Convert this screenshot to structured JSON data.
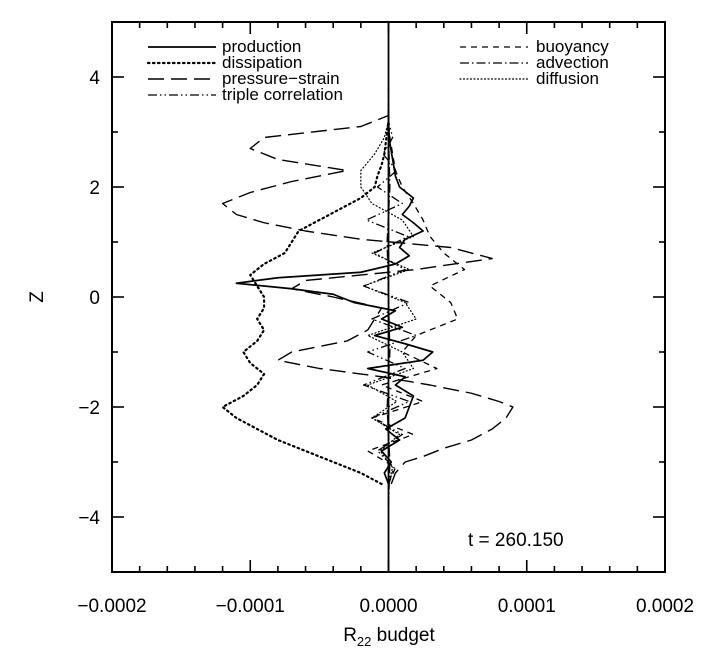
{
  "chart_data": {
    "type": "line",
    "orientation": "vertical-profile",
    "title": "",
    "xlabel_main": "R",
    "xlabel_sub": "22",
    "xlabel_rest": " budget",
    "ylabel": "Z",
    "xlim": [
      -0.0002,
      0.0002
    ],
    "ylim": [
      -5,
      5
    ],
    "x_ticks": [
      -0.0002,
      -0.0001,
      0.0,
      0.0001,
      0.0002
    ],
    "x_tick_labels": [
      "−0.0002",
      "−0.0001",
      "0.0000",
      "0.0001",
      "0.0002"
    ],
    "y_ticks": [
      -4,
      -2,
      0,
      2,
      4
    ],
    "y_tick_labels": [
      "−4",
      "−2",
      "0",
      "2",
      "4"
    ],
    "grid": false,
    "annotation": "t  =  260.150",
    "legend_left": [
      {
        "series": "production",
        "label": "production"
      },
      {
        "series": "dissipation",
        "label": "dissipation"
      },
      {
        "series": "pressure_strain",
        "label": "pressure−strain"
      },
      {
        "series": "triple_correlation",
        "label": "triple correlation"
      }
    ],
    "legend_right": [
      {
        "series": "buoyancy",
        "label": "buoyancy"
      },
      {
        "series": "advection",
        "label": "advection"
      },
      {
        "series": "diffusion",
        "label": "diffusion"
      }
    ],
    "series": {
      "production": {
        "name": "production",
        "dash": "solid",
        "z": [
          -3.4,
          -3.2,
          -3.0,
          -2.8,
          -2.6,
          -2.4,
          -2.2,
          -2.0,
          -1.8,
          -1.6,
          -1.45,
          -1.3,
          -1.15,
          -1.0,
          -0.85,
          -0.7,
          -0.55,
          -0.4,
          -0.25,
          -0.1,
          0.05,
          0.15,
          0.25,
          0.35,
          0.45,
          0.6,
          0.75,
          0.9,
          1.05,
          1.2,
          1.35,
          1.5,
          1.65,
          1.8,
          2.0,
          2.2,
          2.5,
          2.8,
          3.1,
          3.4
        ],
        "x": [
          0.0,
          -3e-06,
          2e-06,
          -5e-06,
          8e-06,
          -2e-06,
          1.2e-05,
          1.5e-05,
          1.8e-05,
          5e-06,
          1.2e-05,
          -1.5e-05,
          2.5e-05,
          3.2e-05,
          1.2e-05,
          -1e-05,
          1e-05,
          -5e-06,
          5e-06,
          -2.5e-05,
          -4e-05,
          -7e-05,
          -0.00011,
          -8e-05,
          -2e-05,
          5e-06,
          1.5e-05,
          8e-06,
          1.2e-05,
          2.5e-05,
          1.8e-05,
          1e-05,
          1.5e-05,
          1.8e-05,
          8e-06,
          5e-06,
          3e-06,
          1e-06,
          0.0,
          0.0
        ]
      },
      "dissipation": {
        "name": "dissipation",
        "dash": "dotted",
        "z": [
          -3.4,
          -3.2,
          -3.0,
          -2.8,
          -2.6,
          -2.4,
          -2.2,
          -2.0,
          -1.8,
          -1.6,
          -1.4,
          -1.2,
          -1.0,
          -0.8,
          -0.6,
          -0.4,
          -0.2,
          0.0,
          0.2,
          0.4,
          0.6,
          0.8,
          1.0,
          1.2,
          1.4,
          1.6,
          1.8,
          2.0,
          2.2,
          2.4,
          2.6,
          2.8,
          3.0,
          3.2
        ],
        "x": [
          -5e-06,
          -2e-05,
          -4e-05,
          -6e-05,
          -8e-05,
          -9.5e-05,
          -0.00011,
          -0.00012,
          -0.000105,
          -9.5e-05,
          -9e-05,
          -0.0001,
          -0.000105,
          -9.5e-05,
          -9e-05,
          -9.5e-05,
          -9e-05,
          -9e-05,
          -9.5e-05,
          -0.0001,
          -9e-05,
          -7.5e-05,
          -7e-05,
          -6.5e-05,
          -5e-05,
          -3.5e-05,
          -2e-05,
          -1e-05,
          -8e-06,
          -5e-06,
          -3e-06,
          -2e-06,
          -1e-06,
          0.0
        ]
      },
      "pressure_strain": {
        "name": "pressure−strain",
        "dash": "long-dash",
        "z": [
          -3.4,
          -3.2,
          -3.0,
          -2.9,
          -2.75,
          -2.6,
          -2.4,
          -2.2,
          -2.0,
          -1.9,
          -1.75,
          -1.6,
          -1.45,
          -1.3,
          -1.15,
          -1.0,
          -0.8,
          -0.6,
          -0.4,
          -0.2,
          0.0,
          0.15,
          0.3,
          0.5,
          0.7,
          0.9,
          1.05,
          1.2,
          1.35,
          1.5,
          1.7,
          1.9,
          2.1,
          2.3,
          2.5,
          2.7,
          2.9,
          3.1,
          3.3
        ],
        "x": [
          2e-06,
          5e-06,
          1.2e-05,
          2.5e-05,
          4e-05,
          6e-05,
          7.5e-05,
          8.5e-05,
          9e-05,
          8e-05,
          6e-05,
          3e-05,
          -5e-06,
          -5e-05,
          -8e-05,
          -7e-05,
          -3e-05,
          -1.5e-05,
          -1e-05,
          -5e-06,
          -4e-05,
          -7e-05,
          -6e-05,
          2e-05,
          7.5e-05,
          4.5e-05,
          -2e-05,
          -6e-05,
          -9e-05,
          -0.00011,
          -0.00012,
          -0.0001,
          -7e-05,
          -3e-05,
          -8e-05,
          -0.0001,
          -9e-05,
          -2e-05,
          0.0
        ]
      },
      "triple_correlation": {
        "name": "triple correlation",
        "dash": "dash-dot-dot",
        "z": [
          -3.4,
          -3.1,
          -2.8,
          -2.5,
          -2.2,
          -1.9,
          -1.6,
          -1.3,
          -1.0,
          -0.7,
          -0.4,
          -0.1,
          0.2,
          0.5,
          0.8,
          1.1,
          1.4,
          1.7,
          2.0,
          2.3,
          2.6,
          2.9,
          3.2
        ],
        "x": [
          0.0,
          4e-06,
          -8e-06,
          1e-05,
          -1.2e-05,
          1.5e-05,
          -1.8e-05,
          1.2e-05,
          -1.5e-05,
          2e-05,
          -1.2e-05,
          1.5e-05,
          -1.8e-05,
          1.2e-05,
          -1e-05,
          1.4e-05,
          -1.6e-05,
          1e-05,
          -8e-06,
          6e-06,
          -4e-06,
          3e-06,
          0.0
        ]
      },
      "buoyancy": {
        "name": "buoyancy",
        "dash": "short-dash",
        "z": [
          -3.4,
          -3.1,
          -2.8,
          -2.5,
          -2.2,
          -1.9,
          -1.6,
          -1.3,
          -1.0,
          -0.7,
          -0.4,
          -0.1,
          0.2,
          0.5,
          0.8,
          1.1,
          1.4,
          1.7,
          2.0,
          2.3,
          2.6,
          2.9,
          3.2
        ],
        "x": [
          0.0,
          5e-06,
          -1.5e-05,
          1.8e-05,
          -1.2e-05,
          2.5e-05,
          -5e-06,
          3.5e-05,
          1e-05,
          2e-05,
          5e-05,
          4.5e-05,
          3e-05,
          5.5e-05,
          4e-05,
          3e-05,
          2.5e-05,
          1.8e-05,
          1e-05,
          5e-06,
          3e-06,
          1e-06,
          0.0
        ]
      },
      "advection": {
        "name": "advection",
        "dash": "dash-dot",
        "z": [
          -3.8,
          -3.0,
          -2.0,
          -1.0,
          0.0,
          1.0,
          2.0,
          3.0,
          3.8
        ],
        "x": [
          0.0,
          1e-06,
          -1e-06,
          1e-06,
          0.0,
          -1e-06,
          1e-06,
          0.0,
          0.0
        ]
      },
      "diffusion": {
        "name": "diffusion",
        "dash": "fine-dot",
        "z": [
          -3.4,
          -3.1,
          -2.8,
          -2.5,
          -2.2,
          -1.9,
          -1.6,
          -1.3,
          -1.0,
          -0.7,
          -0.4,
          -0.1,
          0.2,
          0.5,
          0.8,
          1.1,
          1.4,
          1.7,
          2.0,
          2.3,
          2.6,
          2.9,
          3.2
        ],
        "x": [
          0.0,
          3e-06,
          -6e-06,
          8e-06,
          -1.2e-05,
          6e-06,
          -1.5e-05,
          1.8e-05,
          1e-05,
          -1.5e-05,
          2e-05,
          1.2e-05,
          -1.8e-05,
          1.5e-05,
          -1.2e-05,
          1.8e-05,
          1e-05,
          -1.2e-05,
          -2e-05,
          -2e-05,
          -1e-05,
          -3e-06,
          0.0
        ]
      }
    }
  }
}
